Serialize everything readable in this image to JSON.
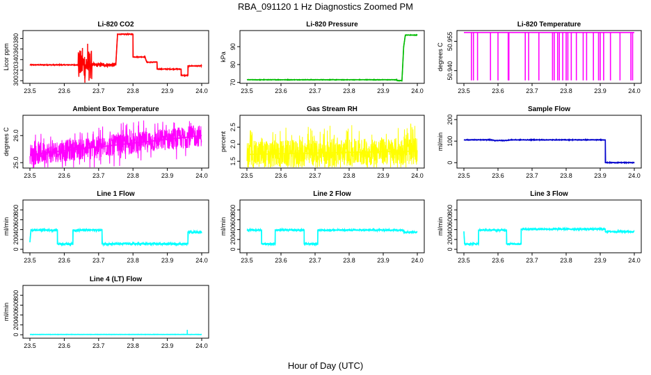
{
  "title": "RBA_091120  1 Hz Diagnostics Zoomed PM",
  "xlabel": "Hour of Day (UTC)",
  "chart_data": [
    {
      "type": "line",
      "title": "Li-820 CO2",
      "ylabel": "Licor ppm",
      "color": "#ff0000",
      "xlim": [
        23.5,
        24.0
      ],
      "ylim": [
        295,
        395
      ],
      "xticks": [
        "23.5",
        "23.6",
        "23.7",
        "23.8",
        "23.9",
        "24.0"
      ],
      "yticks": [
        "300",
        "320",
        "340",
        "360",
        "380"
      ],
      "segments": [
        [
          23.5,
          330
        ],
        [
          23.64,
          330
        ],
        [
          23.75,
          330
        ],
        [
          23.755,
          388
        ],
        [
          23.8,
          388
        ],
        [
          23.8,
          345
        ],
        [
          23.835,
          345
        ],
        [
          23.84,
          335
        ],
        [
          23.87,
          335
        ],
        [
          23.87,
          322
        ],
        [
          23.94,
          322
        ],
        [
          23.94,
          310
        ],
        [
          23.96,
          310
        ],
        [
          23.96,
          328
        ],
        [
          24.0,
          328
        ]
      ],
      "noise": [
        {
          "x0": 23.5,
          "x1": 23.64,
          "amp": 1
        },
        {
          "x0": 23.64,
          "x1": 23.68,
          "amp": 28
        },
        {
          "x0": 23.68,
          "x1": 23.75,
          "amp": 4
        },
        {
          "x0": 23.755,
          "x1": 24.0,
          "amp": 1
        }
      ],
      "spikes": [
        {
          "x": 23.653,
          "y": 362
        },
        {
          "x": 23.66,
          "y": 296
        },
        {
          "x": 23.668,
          "y": 370
        },
        {
          "x": 23.672,
          "y": 300
        }
      ]
    },
    {
      "type": "line",
      "title": "Li-820 Pressure",
      "ylabel": "kPa",
      "color": "#00bb00",
      "xlim": [
        23.5,
        24.0
      ],
      "ylim": [
        69.5,
        99
      ],
      "xticks": [
        "23.5",
        "23.6",
        "23.7",
        "23.8",
        "23.9",
        "24.0"
      ],
      "yticks": [
        "70",
        "80",
        "90"
      ],
      "segments": [
        [
          23.5,
          71.5
        ],
        [
          23.94,
          71.5
        ],
        [
          23.94,
          71
        ],
        [
          23.955,
          71
        ],
        [
          23.96,
          90
        ],
        [
          23.965,
          96.5
        ],
        [
          24.0,
          96.5
        ]
      ],
      "noise": [
        {
          "x0": 23.5,
          "x1": 24.0,
          "amp": 0.2
        }
      ],
      "spikes": []
    },
    {
      "type": "line",
      "title": "Li-820 Temperature",
      "ylabel": "degrees C",
      "color": "#ff00ff",
      "xlim": [
        23.5,
        24.0
      ],
      "ylim": [
        50.9335,
        50.9605
      ],
      "xticks": [
        "23.5",
        "23.6",
        "23.7",
        "23.8",
        "23.9",
        "24.0"
      ],
      "yticks": [
        "50.940",
        "50.955"
      ],
      "segments": [
        [
          23.5,
          50.9595
        ],
        [
          24.0,
          50.9595
        ]
      ],
      "noise": [],
      "drops": [
        23.522,
        23.528,
        23.54,
        23.578,
        23.6,
        23.63,
        23.632,
        23.68,
        23.69,
        23.72,
        23.76,
        23.765,
        23.775,
        23.78,
        23.79,
        23.8,
        23.805,
        23.815,
        23.83,
        23.85,
        23.86,
        23.88,
        23.895,
        23.9,
        23.91,
        23.93,
        23.958,
        23.99,
        23.995
      ],
      "drop_to": 50.935,
      "spikes": []
    },
    {
      "type": "line",
      "title": "Ambient Box Temperature",
      "ylabel": "degrees C",
      "color": "#ff00ff",
      "xlim": [
        23.5,
        24.0
      ],
      "ylim": [
        24.8,
        26.75
      ],
      "xticks": [
        "23.5",
        "23.6",
        "23.7",
        "23.8",
        "23.9",
        "24.0"
      ],
      "yticks": [
        "25.0",
        "26.0"
      ],
      "segments": [
        [
          23.5,
          25.3
        ],
        [
          24.0,
          26.0
        ]
      ],
      "noise": [
        {
          "x0": 23.5,
          "x1": 24.0,
          "amp": 0.5
        }
      ],
      "dense": true,
      "spikes": []
    },
    {
      "type": "line",
      "title": "Gas Stream RH",
      "ylabel": "percent",
      "color": "#ffff00",
      "xlim": [
        23.5,
        24.0
      ],
      "ylim": [
        1.3,
        2.85
      ],
      "xticks": [
        "23.5",
        "23.6",
        "23.7",
        "23.8",
        "23.9",
        "24.0"
      ],
      "yticks": [
        "1.5",
        "2.0",
        "2.5"
      ],
      "segments": [
        [
          23.5,
          1.7
        ],
        [
          24.0,
          1.8
        ]
      ],
      "noise": [
        {
          "x0": 23.5,
          "x1": 24.0,
          "amp": 0.5
        }
      ],
      "dense": true,
      "spikes": []
    },
    {
      "type": "line",
      "title": "Sample Flow",
      "ylabel": "ml/min",
      "color": "#0000cc",
      "xlim": [
        23.5,
        24.0
      ],
      "ylim": [
        -25,
        220
      ],
      "xticks": [
        "23.5",
        "23.6",
        "23.7",
        "23.8",
        "23.9",
        "24.0"
      ],
      "yticks": [
        "0",
        "100",
        "200"
      ],
      "segments": [
        [
          23.5,
          106
        ],
        [
          23.58,
          106
        ],
        [
          23.59,
          103
        ],
        [
          23.62,
          103
        ],
        [
          23.64,
          106
        ],
        [
          23.915,
          106
        ],
        [
          23.915,
          0
        ],
        [
          24.0,
          0
        ]
      ],
      "noise": [
        {
          "x0": 23.5,
          "x1": 24.0,
          "amp": 2
        }
      ],
      "spikes": []
    },
    {
      "type": "line",
      "title": "Line 1 Flow",
      "ylabel": "ml/min",
      "color": "#00ffff",
      "xlim": [
        23.5,
        24.0
      ],
      "ylim": [
        -70,
        1000
      ],
      "xticks": [
        "23.5",
        "23.6",
        "23.7",
        "23.8",
        "23.9",
        "24.0"
      ],
      "yticks": [
        "0",
        "200",
        "400",
        "600",
        "800"
      ],
      "segments": [
        [
          23.5,
          150
        ],
        [
          23.503,
          390
        ],
        [
          23.58,
          390
        ],
        [
          23.58,
          110
        ],
        [
          23.625,
          110
        ],
        [
          23.625,
          390
        ],
        [
          23.71,
          390
        ],
        [
          23.71,
          110
        ],
        [
          23.96,
          110
        ],
        [
          23.96,
          350
        ],
        [
          24.0,
          350
        ]
      ],
      "noise": [
        {
          "x0": 23.5,
          "x1": 24.0,
          "amp": 25
        }
      ],
      "spikes": []
    },
    {
      "type": "line",
      "title": "Line 2 Flow",
      "ylabel": "ml/min",
      "color": "#00ffff",
      "xlim": [
        23.5,
        24.0
      ],
      "ylim": [
        -70,
        1000
      ],
      "xticks": [
        "23.5",
        "23.6",
        "23.7",
        "23.8",
        "23.9",
        "24.0"
      ],
      "yticks": [
        "0",
        "200",
        "400",
        "600",
        "800"
      ],
      "segments": [
        [
          23.5,
          390
        ],
        [
          23.543,
          390
        ],
        [
          23.543,
          110
        ],
        [
          23.583,
          110
        ],
        [
          23.583,
          390
        ],
        [
          23.668,
          390
        ],
        [
          23.668,
          110
        ],
        [
          23.708,
          110
        ],
        [
          23.708,
          390
        ],
        [
          23.96,
          390
        ],
        [
          23.96,
          350
        ],
        [
          24.0,
          350
        ]
      ],
      "noise": [
        {
          "x0": 23.5,
          "x1": 24.0,
          "amp": 20
        }
      ],
      "spikes": []
    },
    {
      "type": "line",
      "title": "Line 3 Flow",
      "ylabel": "ml/min",
      "color": "#00ffff",
      "xlim": [
        23.5,
        24.0
      ],
      "ylim": [
        -70,
        1000
      ],
      "xticks": [
        "23.5",
        "23.6",
        "23.7",
        "23.8",
        "23.9",
        "24.0"
      ],
      "yticks": [
        "0",
        "200",
        "400",
        "600",
        "800"
      ],
      "segments": [
        [
          23.5,
          350
        ],
        [
          23.502,
          110
        ],
        [
          23.543,
          110
        ],
        [
          23.543,
          390
        ],
        [
          23.625,
          390
        ],
        [
          23.625,
          110
        ],
        [
          23.668,
          110
        ],
        [
          23.668,
          410
        ],
        [
          23.915,
          410
        ],
        [
          23.915,
          360
        ],
        [
          24.0,
          360
        ]
      ],
      "noise": [
        {
          "x0": 23.5,
          "x1": 24.0,
          "amp": 20
        }
      ],
      "spikes": []
    },
    {
      "type": "line",
      "title": "Line 4 (LT) Flow",
      "ylabel": "ml/min",
      "color": "#00ffff",
      "xlim": [
        23.5,
        24.0
      ],
      "ylim": [
        -70,
        1000
      ],
      "xticks": [
        "23.5",
        "23.6",
        "23.7",
        "23.8",
        "23.9",
        "24.0"
      ],
      "yticks": [
        "0",
        "200",
        "400",
        "600",
        "800"
      ],
      "segments": [
        [
          23.5,
          5
        ],
        [
          24.0,
          5
        ]
      ],
      "noise": [
        {
          "x0": 23.5,
          "x1": 24.0,
          "amp": 4
        }
      ],
      "spikes": [
        {
          "x": 23.958,
          "y": 100
        }
      ]
    }
  ]
}
